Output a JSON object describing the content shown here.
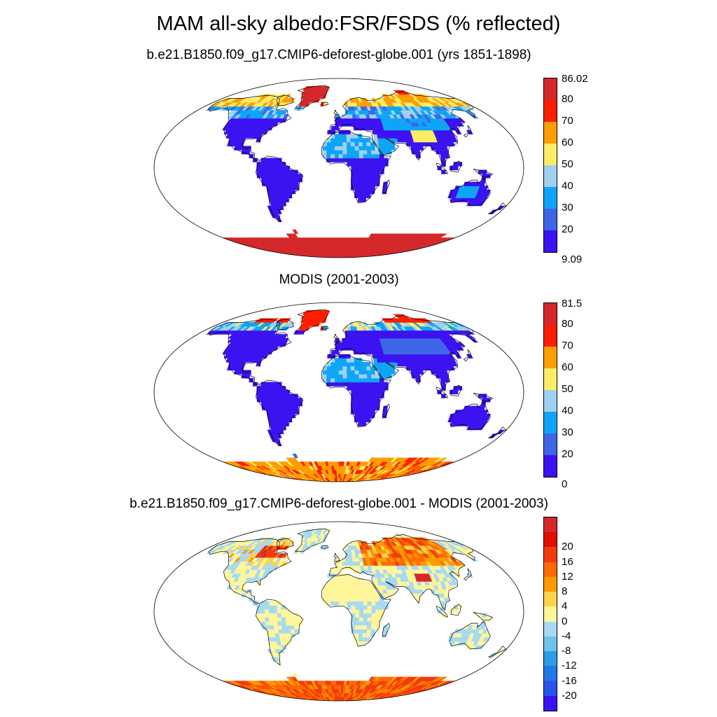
{
  "title": "MAM all-sky albedo:FSR/FSDS (% reflected)",
  "panels": [
    {
      "title": "b.e21.B1850.f09_g17.CMIP6-deforest-globe.001 (yrs 1851-1898)",
      "field": "model",
      "colorbar": {
        "colors": [
          "#3d12f2",
          "#3f66e6",
          "#0ea5f8",
          "#9fd0ef",
          "#fdec66",
          "#fd9d00",
          "#fd1e00",
          "#d5282a"
        ],
        "labels": [
          "9.09",
          "20",
          "30",
          "40",
          "50",
          "60",
          "70",
          "80",
          "86.02"
        ]
      }
    },
    {
      "title": "MODIS (2001-2003)",
      "field": "obs",
      "colorbar": {
        "colors": [
          "#3d12f2",
          "#3f66e6",
          "#0ea5f8",
          "#9fd0ef",
          "#fdec66",
          "#fd9d00",
          "#fd1e00",
          "#d5282a"
        ],
        "labels": [
          "0",
          "20",
          "30",
          "40",
          "50",
          "60",
          "70",
          "80",
          "81.5"
        ]
      }
    },
    {
      "title": "b.e21.B1850.f09_g17.CMIP6-deforest-globe.001 - MODIS (2001-2003)",
      "field": "diff",
      "colorbar": {
        "colors": [
          "#3d12f2",
          "#2b55ea",
          "#1f79e8",
          "#2b9ce6",
          "#6fc2ed",
          "#a7d9f2",
          "#fff59a",
          "#fdd34a",
          "#fd9a00",
          "#fd6a00",
          "#f23a0b",
          "#e30d00",
          "#d5282a"
        ],
        "labels": [
          "-20",
          "-16",
          "-12",
          "-8",
          "-4",
          "0",
          "4",
          "8",
          "12",
          "16",
          "20"
        ]
      }
    }
  ]
}
